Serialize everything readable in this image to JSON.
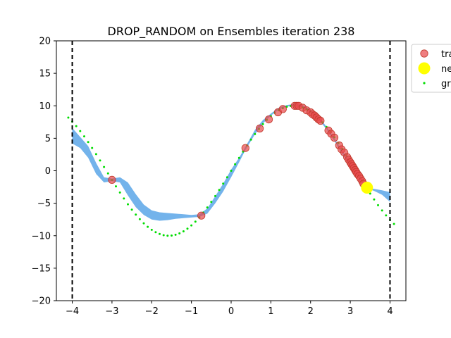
{
  "chart_data": {
    "type": "scatter",
    "title": "DROP_RANDOM on Ensembles iteration 238",
    "xlabel": "",
    "ylabel": "",
    "xlim": [
      -4.4,
      4.4
    ],
    "ylim": [
      -20,
      20
    ],
    "xticks": [
      -4,
      -3,
      -2,
      -1,
      0,
      1,
      2,
      3,
      4
    ],
    "yticks": [
      -20,
      -15,
      -10,
      -5,
      0,
      5,
      10,
      15,
      20
    ],
    "grid": false,
    "legend_position": "upper-right-outside",
    "domain_bounds": [
      -4,
      4
    ],
    "series": [
      {
        "name": "tra",
        "kind": "training-points",
        "color": "#e8474a",
        "x": [
          -3.0,
          -0.75,
          0.36,
          0.72,
          0.95,
          1.18,
          1.3,
          1.6,
          1.65,
          1.7,
          1.8,
          1.9,
          2.0,
          2.05,
          2.1,
          2.15,
          2.2,
          2.25,
          2.45,
          2.52,
          2.6,
          2.72,
          2.78,
          2.85,
          2.92,
          2.96,
          3.0,
          3.03,
          3.06,
          3.09,
          3.12,
          3.15,
          3.18,
          3.22,
          3.26,
          3.3,
          3.33
        ],
        "y": [
          -1.4,
          -6.9,
          3.5,
          6.5,
          7.9,
          9.0,
          9.5,
          10.0,
          10.0,
          10.0,
          9.7,
          9.3,
          9.0,
          8.7,
          8.5,
          8.2,
          7.9,
          7.7,
          6.2,
          5.7,
          5.1,
          3.9,
          3.3,
          2.8,
          2.1,
          1.7,
          1.3,
          1.0,
          0.7,
          0.4,
          0.1,
          -0.2,
          -0.5,
          -0.8,
          -1.2,
          -1.6,
          -2.0
        ]
      },
      {
        "name": "ne",
        "kind": "new-point",
        "color": "#ffff00",
        "x": [
          3.42
        ],
        "y": [
          -2.6
        ]
      },
      {
        "name": "gr",
        "kind": "ground-truth",
        "color": "#00dd00",
        "function": "10*sin(x)"
      },
      {
        "name": "",
        "kind": "uncertainty-band",
        "color": "#5aa6e8",
        "x": [
          -4.0,
          -3.8,
          -3.6,
          -3.4,
          -3.2,
          -3.0,
          -2.8,
          -2.6,
          -2.4,
          -2.2,
          -2.0,
          -1.8,
          -1.6,
          -1.4,
          -1.2,
          -1.0,
          -0.8,
          -0.6,
          -0.4,
          -0.2,
          0.0,
          0.2,
          0.36,
          0.6,
          0.8,
          1.0,
          1.2,
          1.4,
          1.6,
          1.8,
          2.0,
          2.2,
          2.4,
          2.6,
          2.8,
          3.0,
          3.2,
          3.42,
          3.6,
          3.8,
          4.0
        ],
        "lower": [
          4.2,
          3.5,
          2.0,
          -0.5,
          -1.8,
          -1.6,
          -1.8,
          -3.8,
          -5.6,
          -6.8,
          -7.5,
          -7.7,
          -7.6,
          -7.4,
          -7.3,
          -7.2,
          -7.1,
          -6.6,
          -5.0,
          -3.2,
          -1.0,
          1.3,
          3.2,
          5.6,
          7.3,
          8.5,
          9.4,
          9.9,
          10.0,
          9.8,
          9.0,
          7.9,
          6.4,
          4.6,
          2.6,
          0.8,
          -1.0,
          -2.7,
          -3.1,
          -3.7,
          -4.8
        ],
        "upper": [
          6.6,
          5.2,
          3.8,
          1.2,
          -1.0,
          -1.2,
          -1.0,
          -1.8,
          -3.6,
          -5.2,
          -6.1,
          -6.4,
          -6.5,
          -6.6,
          -6.7,
          -6.8,
          -6.7,
          -5.8,
          -3.9,
          -2.0,
          0.2,
          2.0,
          3.7,
          6.3,
          7.8,
          8.8,
          9.7,
          10.1,
          10.3,
          10.1,
          9.4,
          8.3,
          6.8,
          5.0,
          3.0,
          1.3,
          -0.5,
          -2.6,
          -2.8,
          -3.0,
          -3.3
        ]
      }
    ]
  }
}
